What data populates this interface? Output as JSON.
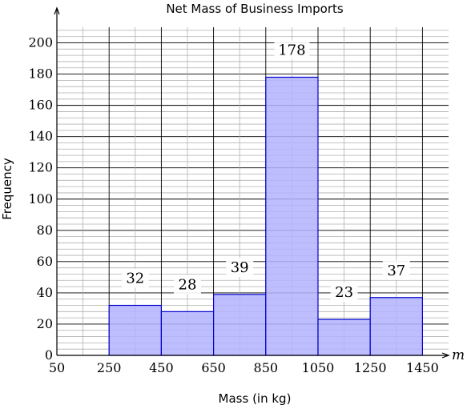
{
  "chart_data": {
    "type": "bar",
    "title": "Net Mass of Business Imports",
    "xlabel": "Mass (in kg)",
    "ylabel": "Frequency",
    "x_axis_variable": "m",
    "x_ticks": [
      50,
      250,
      450,
      650,
      850,
      1050,
      1250,
      1450
    ],
    "y_ticks": [
      0,
      20,
      40,
      60,
      80,
      100,
      120,
      140,
      160,
      180,
      200
    ],
    "xlim": [
      50,
      1550
    ],
    "ylim": [
      0,
      210
    ],
    "grid": true,
    "bins": [
      {
        "start": 50,
        "end": 250,
        "value": 0
      },
      {
        "start": 250,
        "end": 450,
        "value": 32
      },
      {
        "start": 450,
        "end": 650,
        "value": 28
      },
      {
        "start": 650,
        "end": 850,
        "value": 39
      },
      {
        "start": 850,
        "end": 1050,
        "value": 178
      },
      {
        "start": 1050,
        "end": 1250,
        "value": 23
      },
      {
        "start": 1250,
        "end": 1450,
        "value": 37
      }
    ],
    "bar_color": "#b3b3ff",
    "bar_edge_color": "#0000cc"
  }
}
